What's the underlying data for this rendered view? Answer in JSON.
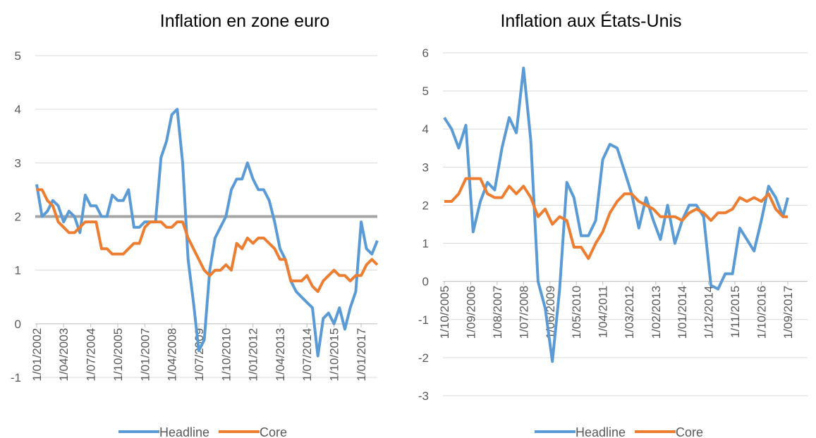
{
  "chart_data": [
    {
      "type": "line",
      "title": "Inflation en zone euro",
      "x": [
        "1/01/2002",
        "1/04/2002",
        "1/07/2002",
        "1/10/2002",
        "1/01/2003",
        "1/04/2003",
        "1/07/2003",
        "1/10/2003",
        "1/01/2004",
        "1/04/2004",
        "1/07/2004",
        "1/10/2004",
        "1/01/2005",
        "1/04/2005",
        "1/07/2005",
        "1/10/2005",
        "1/01/2006",
        "1/04/2006",
        "1/07/2006",
        "1/10/2006",
        "1/01/2007",
        "1/04/2007",
        "1/07/2007",
        "1/10/2007",
        "1/01/2008",
        "1/04/2008",
        "1/07/2008",
        "1/10/2008",
        "1/01/2009",
        "1/04/2009",
        "1/07/2009",
        "1/10/2009",
        "1/01/2010",
        "1/04/2010",
        "1/07/2010",
        "1/10/2010",
        "1/01/2011",
        "1/04/2011",
        "1/07/2011",
        "1/10/2011",
        "1/01/2012",
        "1/04/2012",
        "1/07/2012",
        "1/10/2012",
        "1/01/2013",
        "1/04/2013",
        "1/07/2013",
        "1/10/2013",
        "1/01/2014",
        "1/04/2014",
        "1/07/2014",
        "1/10/2014",
        "1/01/2015",
        "1/04/2015",
        "1/07/2015",
        "1/10/2015",
        "1/01/2016",
        "1/04/2016",
        "1/07/2016",
        "1/10/2016",
        "1/01/2017",
        "1/04/2017",
        "1/07/2017",
        "1/10/2017"
      ],
      "series": [
        {
          "name": "Headline",
          "color": "#5b9bd5",
          "values": [
            2.6,
            2.0,
            2.1,
            2.3,
            2.2,
            1.9,
            2.1,
            2.0,
            1.7,
            2.4,
            2.2,
            2.2,
            2.0,
            2.0,
            2.4,
            2.3,
            2.3,
            2.5,
            1.8,
            1.8,
            1.9,
            1.9,
            1.9,
            3.1,
            3.4,
            3.9,
            4.0,
            3.0,
            1.2,
            0.4,
            -0.5,
            -0.3,
            1.0,
            1.6,
            1.8,
            2.0,
            2.5,
            2.7,
            2.7,
            3.0,
            2.7,
            2.5,
            2.5,
            2.3,
            1.9,
            1.4,
            1.2,
            0.8,
            0.6,
            0.5,
            0.4,
            0.3,
            -0.6,
            0.1,
            0.2,
            0.0,
            0.3,
            -0.1,
            0.3,
            0.6,
            1.9,
            1.4,
            1.3,
            1.55
          ]
        },
        {
          "name": "Core",
          "color": "#ed7d31",
          "values": [
            2.5,
            2.5,
            2.3,
            2.2,
            1.9,
            1.8,
            1.7,
            1.7,
            1.8,
            1.9,
            1.9,
            1.9,
            1.4,
            1.4,
            1.3,
            1.3,
            1.3,
            1.4,
            1.5,
            1.5,
            1.8,
            1.9,
            1.9,
            1.9,
            1.8,
            1.8,
            1.9,
            1.9,
            1.6,
            1.4,
            1.2,
            1.0,
            0.9,
            1.0,
            1.0,
            1.1,
            1.0,
            1.5,
            1.4,
            1.6,
            1.5,
            1.6,
            1.6,
            1.5,
            1.4,
            1.2,
            1.2,
            0.8,
            0.8,
            0.8,
            0.9,
            0.7,
            0.6,
            0.8,
            0.9,
            1.0,
            0.9,
            0.9,
            0.8,
            0.9,
            0.9,
            1.1,
            1.2,
            1.1
          ]
        }
      ],
      "hline": {
        "value": 2,
        "color": "#a5a5a5"
      },
      "xticks": [
        "1/01/2002",
        "1/04/2003",
        "1/07/2004",
        "1/10/2005",
        "1/01/2007",
        "1/04/2008",
        "1/07/2009",
        "1/10/2010",
        "1/01/2012",
        "1/04/2013",
        "1/07/2014",
        "1/10/2015",
        "1/01/2017"
      ],
      "ylim": [
        -1,
        5
      ],
      "yticks": [
        -1,
        0,
        1,
        2,
        3,
        4,
        5
      ],
      "grid": true,
      "legend": "bottom"
    },
    {
      "type": "line",
      "title": "Inflation aux États-Unis",
      "x": [
        "1/10/2005",
        "1/01/2006",
        "1/04/2006",
        "1/07/2006",
        "1/10/2006",
        "1/01/2007",
        "1/04/2007",
        "1/07/2007",
        "1/10/2007",
        "1/01/2008",
        "1/04/2008",
        "1/07/2008",
        "1/10/2008",
        "1/01/2009",
        "1/04/2009",
        "1/07/2009",
        "1/10/2009",
        "1/01/2010",
        "1/04/2010",
        "1/07/2010",
        "1/10/2010",
        "1/01/2011",
        "1/04/2011",
        "1/07/2011",
        "1/10/2011",
        "1/01/2012",
        "1/04/2012",
        "1/07/2012",
        "1/10/2012",
        "1/01/2013",
        "1/04/2013",
        "1/07/2013",
        "1/10/2013",
        "1/01/2014",
        "1/04/2014",
        "1/07/2014",
        "1/10/2014",
        "1/01/2015",
        "1/04/2015",
        "1/07/2015",
        "1/10/2015",
        "1/01/2016",
        "1/04/2016",
        "1/07/2016",
        "1/10/2016",
        "1/01/2017",
        "1/04/2017",
        "1/07/2017",
        "1/09/2017"
      ],
      "series": [
        {
          "name": "Headline",
          "color": "#5b9bd5",
          "values": [
            4.3,
            4.0,
            3.5,
            4.1,
            1.3,
            2.1,
            2.6,
            2.4,
            3.5,
            4.3,
            3.9,
            5.6,
            3.7,
            0.0,
            -0.7,
            -2.1,
            -0.2,
            2.6,
            2.2,
            1.2,
            1.2,
            1.6,
            3.2,
            3.6,
            3.5,
            2.9,
            2.3,
            1.4,
            2.2,
            1.6,
            1.1,
            2.0,
            1.0,
            1.6,
            2.0,
            2.0,
            1.7,
            -0.1,
            -0.2,
            0.2,
            0.2,
            1.4,
            1.1,
            0.8,
            1.6,
            2.5,
            2.2,
            1.7,
            2.2
          ]
        },
        {
          "name": "Core",
          "color": "#ed7d31",
          "values": [
            2.1,
            2.1,
            2.3,
            2.7,
            2.7,
            2.7,
            2.3,
            2.2,
            2.2,
            2.5,
            2.3,
            2.5,
            2.2,
            1.7,
            1.9,
            1.5,
            1.7,
            1.6,
            0.9,
            0.9,
            0.6,
            1.0,
            1.3,
            1.8,
            2.1,
            2.3,
            2.3,
            2.1,
            2.0,
            1.9,
            1.7,
            1.7,
            1.7,
            1.6,
            1.8,
            1.9,
            1.8,
            1.6,
            1.8,
            1.8,
            1.9,
            2.2,
            2.1,
            2.2,
            2.1,
            2.3,
            1.9,
            1.7,
            1.7
          ]
        }
      ],
      "xticks": [
        "1/10/2005",
        "1/09/2006",
        "1/08/2007",
        "1/07/2008",
        "1/06/2009",
        "1/05/2010",
        "1/04/2011",
        "1/03/2012",
        "1/02/2013",
        "1/01/2014",
        "1/12/2014",
        "1/11/2015",
        "1/10/2016",
        "1/09/2017"
      ],
      "ylim": [
        -3,
        6
      ],
      "yticks": [
        -3,
        -2,
        -1,
        0,
        1,
        2,
        3,
        4,
        5,
        6
      ],
      "grid": true,
      "legend": "bottom"
    }
  ]
}
